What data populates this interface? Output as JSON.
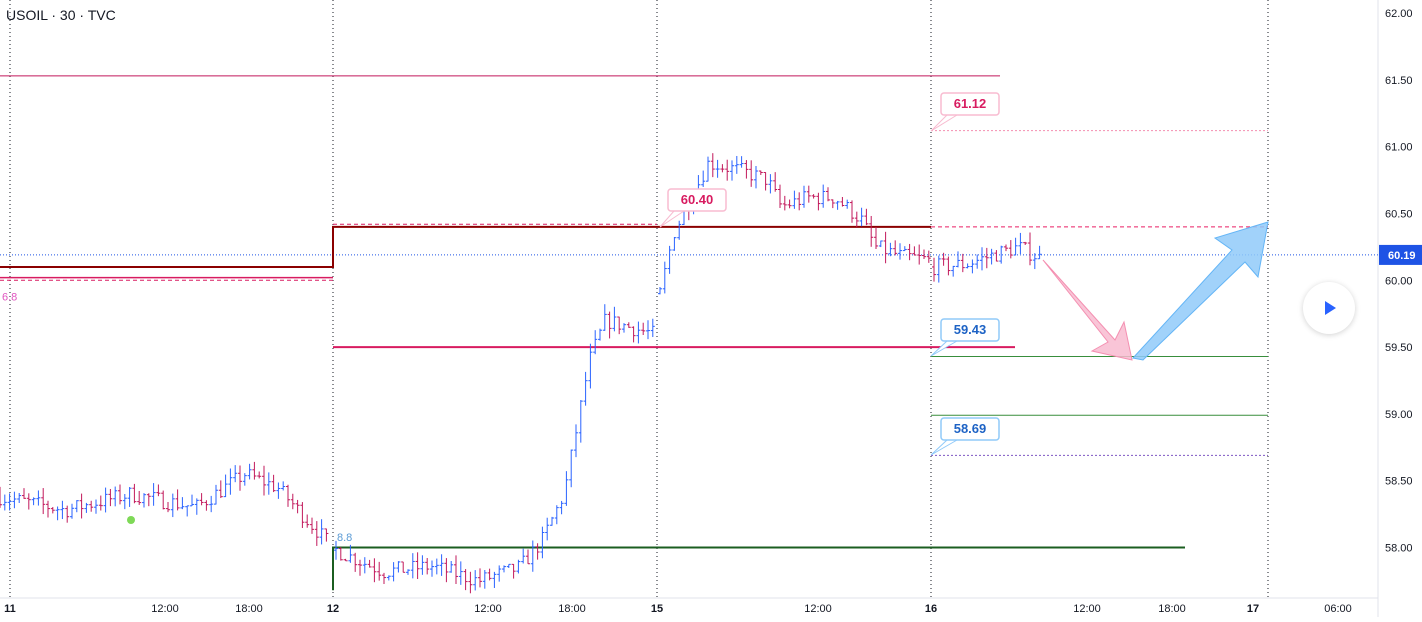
{
  "header": {
    "title": "USOIL · 30 · TVC"
  },
  "colors": {
    "up": "#2962ff",
    "down": "#c2185b",
    "resistance": "#8b0000",
    "support": "#1b5e20",
    "magenta": "#d81b60",
    "pink_label": "#f8bbd0",
    "blue_label": "#90caf9",
    "price_badge": "#1e53e5"
  },
  "chart_data": {
    "type": "candlestick",
    "symbol": "USOIL",
    "interval": "30",
    "exchange": "TVC",
    "y_axis": {
      "ticks": [
        "62.00",
        "61.50",
        "61.00",
        "60.50",
        "60.00",
        "59.50",
        "59.00",
        "58.50",
        "58.00"
      ],
      "range": [
        57.7,
        62.05
      ]
    },
    "x_axis": {
      "ticks": [
        "11",
        "12:00",
        "18:00",
        "12",
        "12:00",
        "18:00",
        "15",
        "12:00",
        "16",
        "12:00",
        "18:00",
        "17",
        "06:00"
      ]
    },
    "current_price": "60.19",
    "levels": [
      {
        "name": "resistance-level",
        "price": 60.4,
        "color": "#8b0000"
      },
      {
        "name": "support-level",
        "price": 58.0,
        "color": "#1b5e20"
      },
      {
        "name": "magenta-level-60.00",
        "price": 60.0,
        "color": "#d81b60"
      },
      {
        "name": "magenta-level-59.50",
        "price": 59.5,
        "color": "#d81b60"
      },
      {
        "name": "top-line-61.53",
        "price": 61.53,
        "color": "#c2185b"
      },
      {
        "name": "green-line-59.43",
        "price": 59.43,
        "color": "#388e3c"
      },
      {
        "name": "green-line-58.99",
        "price": 58.99,
        "color": "#388e3c"
      }
    ],
    "annotations": {
      "label_61_12": "61.12",
      "label_60_40": "60.40",
      "label_59_43": "59.43",
      "label_58_69": "58.69",
      "side_label_left": "6.8",
      "side_label_mid": "8.8"
    },
    "projection": [
      {
        "direction": "down",
        "from": 60.17,
        "to": 59.43
      },
      {
        "direction": "up",
        "from": 59.43,
        "to": 60.4
      }
    ],
    "segments": [
      {
        "start_price": 58.35,
        "end_price": 58.05,
        "anchors": [
          [
            0,
            58.38
          ],
          [
            20,
            58.28
          ],
          [
            40,
            58.4
          ],
          [
            60,
            58.3
          ],
          [
            75,
            58.55
          ],
          [
            85,
            58.45
          ],
          [
            100,
            58.05
          ]
        ]
      },
      {
        "start_price": 57.98,
        "end_price": 59.6,
        "anchors": [
          [
            0,
            57.98
          ],
          [
            15,
            57.82
          ],
          [
            30,
            57.86
          ],
          [
            45,
            57.75
          ],
          [
            58,
            57.85
          ],
          [
            65,
            58.05
          ],
          [
            72,
            58.4
          ],
          [
            80,
            59.4
          ],
          [
            85,
            59.7
          ],
          [
            100,
            59.6
          ]
        ]
      },
      {
        "start_price": 59.9,
        "end_price": 60.15,
        "anchors": [
          [
            0,
            59.9
          ],
          [
            5,
            60.35
          ],
          [
            10,
            60.55
          ],
          [
            18,
            60.88
          ],
          [
            30,
            60.82
          ],
          [
            40,
            60.75
          ],
          [
            45,
            60.55
          ],
          [
            55,
            60.62
          ],
          [
            65,
            60.62
          ],
          [
            75,
            60.45
          ],
          [
            80,
            60.25
          ],
          [
            90,
            60.18
          ],
          [
            100,
            60.15
          ]
        ]
      },
      {
        "start_price": 60.1,
        "end_price": 60.17,
        "anchors": [
          [
            0,
            60.1
          ],
          [
            30,
            60.12
          ],
          [
            60,
            60.2
          ],
          [
            80,
            60.25
          ],
          [
            100,
            60.17
          ]
        ]
      }
    ]
  }
}
